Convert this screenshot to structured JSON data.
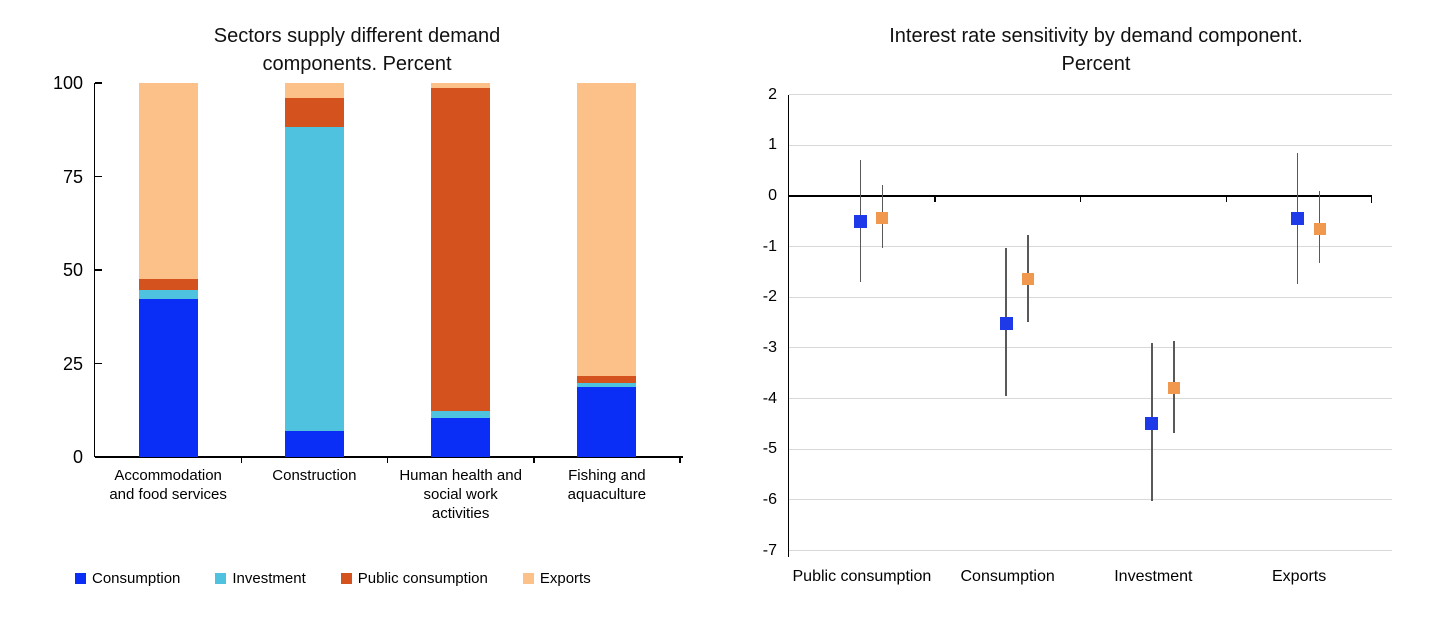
{
  "chart_data": [
    {
      "type": "bar",
      "stacked": true,
      "title": "Sectors supply different demand components. Percent",
      "title_lines": [
        "Sectors supply different demand",
        "components. Percent"
      ],
      "categories": [
        "Accommodation and food services",
        "Construction",
        "Human health and social work activities",
        "Fishing and aquaculture"
      ],
      "category_lines": [
        [
          "Accommodation",
          "and food services"
        ],
        [
          "Construction"
        ],
        [
          "Human health and",
          "social work",
          "activities"
        ],
        [
          "Fishing and",
          "aquaculture"
        ]
      ],
      "series": [
        {
          "name": "Consumption",
          "color": "#0a2ef5",
          "values": [
            42.2,
            7.0,
            10.5,
            18.7
          ]
        },
        {
          "name": "Investment",
          "color": "#4ec2df",
          "values": [
            2.4,
            81.2,
            1.8,
            1.1
          ]
        },
        {
          "name": "Public consumption",
          "color": "#d4521d",
          "values": [
            3.0,
            7.8,
            86.4,
            1.9
          ]
        },
        {
          "name": "Exports",
          "color": "#fbc189",
          "values": [
            52.4,
            4.0,
            1.3,
            78.3
          ]
        }
      ],
      "xlabel": "",
      "ylabel": "",
      "ylim": [
        0,
        100
      ],
      "y_ticks": [
        100,
        75,
        50,
        25,
        0
      ],
      "grid": false,
      "legend_position": "bottom"
    },
    {
      "type": "scatter",
      "title": "Interest rate sensitivity by demand component. Percent",
      "title_lines": [
        "Interest rate sensitivity by demand component.",
        "Percent"
      ],
      "categories": [
        "Public consumption",
        "Consumption",
        "Investment",
        "Exports"
      ],
      "series": [
        {
          "name": "blue",
          "color": "#1e3ae8",
          "marker": "square",
          "points": [
            {
              "value": -0.5,
              "hi": 0.71,
              "lo": -1.7
            },
            {
              "value": -2.52,
              "hi": -1.02,
              "lo": -3.95
            },
            {
              "value": -4.5,
              "hi": -2.9,
              "lo": -6.02
            },
            {
              "value": -0.45,
              "hi": 0.85,
              "lo": -1.74
            }
          ]
        },
        {
          "name": "orange",
          "color": "#f0984e",
          "marker": "square",
          "points": [
            {
              "value": -0.43,
              "hi": 0.22,
              "lo": -1.03
            },
            {
              "value": -1.64,
              "hi": -0.77,
              "lo": -2.49
            },
            {
              "value": -3.79,
              "hi": -2.86,
              "lo": -4.67
            },
            {
              "value": -0.65,
              "hi": 0.1,
              "lo": -1.32
            }
          ]
        }
      ],
      "error_bars": true,
      "xlabel": "",
      "ylabel": "",
      "ylim": [
        -7,
        2
      ],
      "y_ticks": [
        2,
        1,
        0,
        -1,
        -2,
        -3,
        -4,
        -5,
        -6,
        -7
      ],
      "grid": true,
      "legend_position": "none"
    }
  ],
  "colors": {
    "axis": "#000000",
    "gridline": "#d9d9d9",
    "error_bar": "#595959",
    "text": "#111111"
  }
}
